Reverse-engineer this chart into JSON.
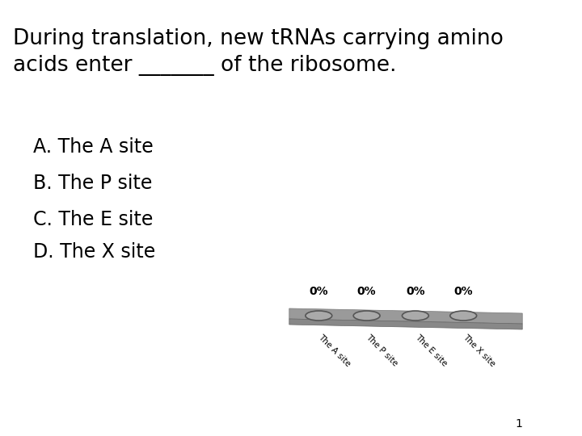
{
  "title_line1": "During translation, new tRNAs carrying amino",
  "title_line2": "acids enter _______ of the ribosome.",
  "options": [
    "A. The A site",
    "B. The P site",
    "C. The E site",
    "D. The X site"
  ],
  "site_labels": [
    "The A site",
    "The P site",
    "The E site",
    "The X site"
  ],
  "percentages": [
    "0%",
    "0%",
    "0%",
    "0%"
  ],
  "bg_color": "#ffffff",
  "ribosome_color": "#999999",
  "ribosome_shadow_color": "#777777",
  "ellipse_color": "#888888",
  "ellipse_face": "#cccccc",
  "page_number": "1"
}
